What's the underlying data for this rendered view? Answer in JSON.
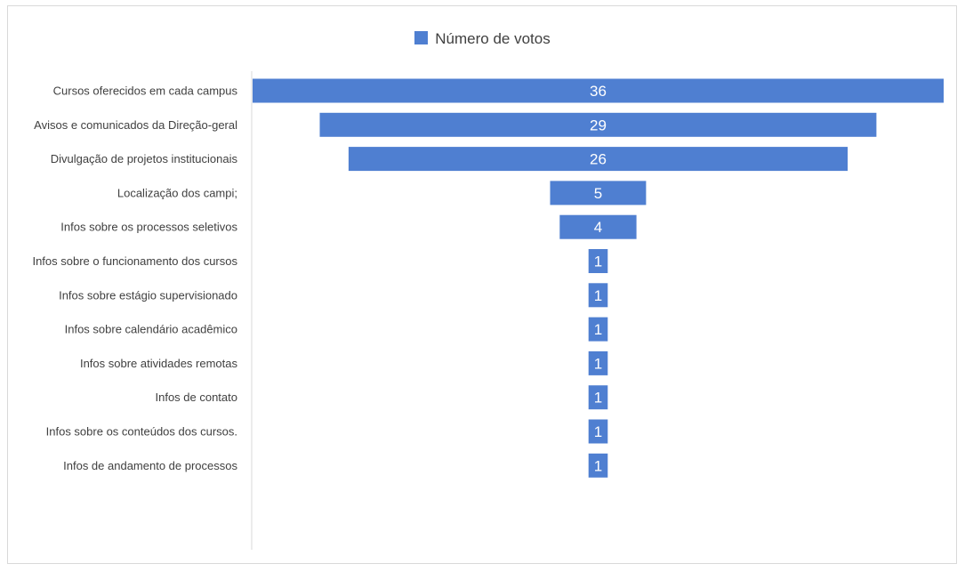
{
  "chart_data": {
    "type": "bar",
    "orientation": "horizontal-funnel",
    "legend": {
      "position": "top-center",
      "label": "Número de votos"
    },
    "series": [
      {
        "name": "Número de votos",
        "color": "#4f7fd1",
        "values": [
          36,
          29,
          26,
          5,
          4,
          1,
          1,
          1,
          1,
          1,
          1,
          1
        ]
      }
    ],
    "categories": [
      "Cursos oferecidos em cada campus",
      "Avisos e comunicados da Direção-geral",
      "Divulgação de projetos institucionais",
      "Localização dos campi;",
      "Infos sobre os processos seletivos",
      "Infos sobre o funcionamento dos cursos",
      "Infos sobre estágio supervisionado",
      "Infos sobre calendário acadêmico",
      "Infos sobre atividades remotas",
      "Infos de contato",
      "Infos sobre os conteúdos dos cursos.",
      "Infos de andamento de processos"
    ],
    "data_labels": [
      "36",
      "29",
      "26",
      "5",
      "4",
      "1",
      "1",
      "1",
      "1",
      "1",
      "1",
      "1"
    ],
    "xlim": [
      0,
      36
    ],
    "grid": false
  }
}
